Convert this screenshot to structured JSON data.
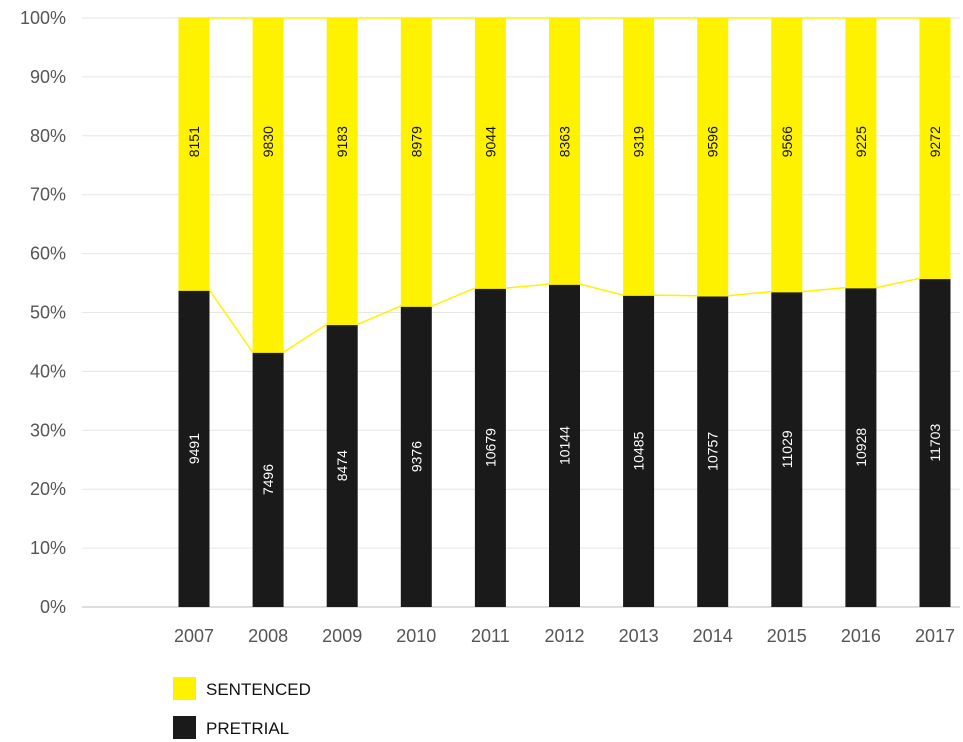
{
  "chart_data": {
    "type": "bar",
    "stacked": true,
    "normalized": true,
    "categories": [
      "2007",
      "2008",
      "2009",
      "2010",
      "2011",
      "2012",
      "2013",
      "2014",
      "2015",
      "2016",
      "2017"
    ],
    "series": [
      {
        "name": "PRETRIAL",
        "color": "#1a1a1a",
        "values": [
          9491,
          7496,
          8474,
          9376,
          10679,
          10144,
          10485,
          10757,
          11029,
          10928,
          11703
        ]
      },
      {
        "name": "SENTENCED",
        "color": "#fff200",
        "values": [
          8151,
          9830,
          9183,
          8979,
          9044,
          8363,
          9319,
          9596,
          9566,
          9225,
          9272
        ]
      }
    ],
    "y_ticks": [
      "0%",
      "10%",
      "20%",
      "30%",
      "40%",
      "50%",
      "60%",
      "70%",
      "80%",
      "90%",
      "100%"
    ],
    "ylim": [
      0,
      100
    ],
    "grid": true,
    "legend_position": "bottom-left",
    "legend": [
      {
        "label": "SENTENCED",
        "color": "#fff200"
      },
      {
        "label": "PRETRIAL",
        "color": "#1a1a1a"
      }
    ]
  }
}
